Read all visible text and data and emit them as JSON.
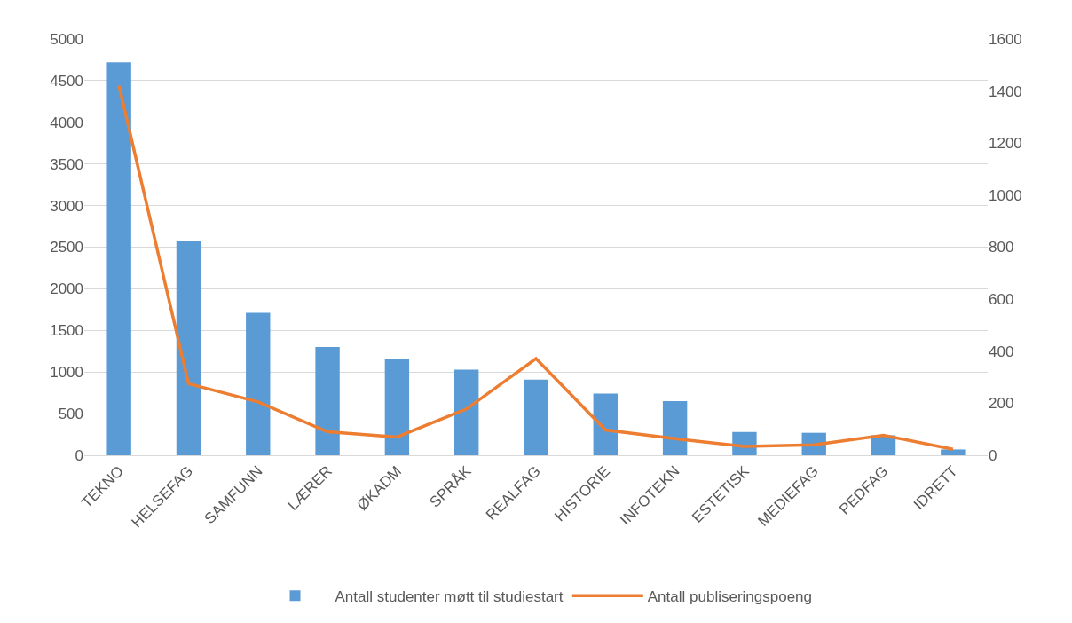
{
  "chart_data": {
    "type": "bar",
    "categories": [
      "TEKNO",
      "HELSEFAG",
      "SAMFUNN",
      "LÆRER",
      "ØKADM",
      "SPRÅK",
      "REALFAG",
      "HISTORIE",
      "INFOTEKN",
      "ESTETISK",
      "MEDIEFAG",
      "PEDFAG",
      "IDRETT"
    ],
    "series": [
      {
        "name": "Antall studenter møtt til studiestart",
        "color": "#5b9bd5",
        "values": [
          4720,
          2580,
          1710,
          1300,
          1160,
          1030,
          910,
          740,
          650,
          280,
          270,
          240,
          70
        ]
      },
      {
        "name": "Antall publiseringspoeng",
        "type": "line",
        "axis": "y2",
        "color": "#ed7d31",
        "marker": "none",
        "line_style": "solid",
        "values": [
          1420,
          275,
          205,
          90,
          70,
          178,
          372,
          97,
          64,
          34,
          40,
          77,
          23
        ]
      }
    ],
    "ylim": [
      0,
      5000
    ],
    "yticks": [
      0,
      500,
      1000,
      1500,
      2000,
      2500,
      3000,
      3500,
      4000,
      4500,
      5000
    ],
    "y2lim": [
      0,
      1600
    ],
    "y2ticks": [
      0,
      200,
      400,
      600,
      800,
      1000,
      1200,
      1400,
      1600
    ],
    "grid": "y",
    "legend": "bottom"
  }
}
